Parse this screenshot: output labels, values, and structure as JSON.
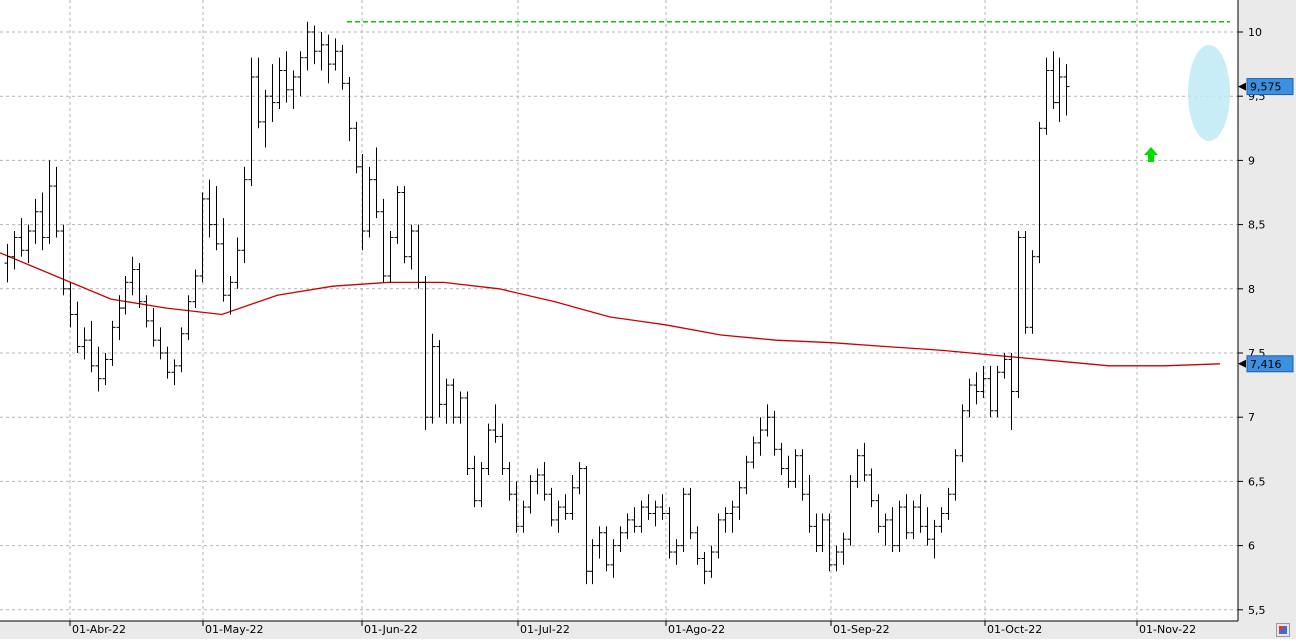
{
  "colors": {
    "grid": "#b4b4b4",
    "bars": "#000000",
    "moving_average": "#cc0000",
    "resistance": "#00cc00",
    "arrow": "#00dd00",
    "highlight": "#bfeaf5",
    "price_tag": "#3d8fe0",
    "axis_bg": "#eaeaea"
  },
  "icons": [
    "green-up-arrow-icon",
    "chart-settings-icon"
  ],
  "chart_data": {
    "type": "ohlc",
    "title": "",
    "xlabel": "",
    "ylabel": "",
    "ylim": [
      5.5,
      10.1
    ],
    "grid": true,
    "y_ticks": [
      "5,5",
      "6",
      "6,5",
      "7",
      "7,5",
      "8",
      "8,5",
      "9",
      "9,5",
      "10"
    ],
    "x_ticks": [
      "01-Abr-22",
      "01-May-22",
      "01-Jun-22",
      "01-Jul-22",
      "01-Ago-22",
      "01-Sep-22",
      "01-Oct-22",
      "01-Nov-22"
    ],
    "last_price_label": "9,575",
    "last_price": 9.575,
    "moving_average_label": "7,416",
    "moving_average_value": 7.416,
    "resistance_level": 10.08,
    "series": [
      {
        "ohlc": [
          [
            8.2,
            8.35,
            8.05,
            8.25
          ],
          [
            8.25,
            8.45,
            8.15,
            8.4
          ],
          [
            8.4,
            8.55,
            8.25,
            8.3
          ],
          [
            8.3,
            8.5,
            8.2,
            8.45
          ],
          [
            8.45,
            8.7,
            8.35,
            8.6
          ],
          [
            8.6,
            8.75,
            8.3,
            8.4
          ],
          [
            8.4,
            9.0,
            8.35,
            8.8
          ],
          [
            8.8,
            8.95,
            8.4,
            8.45
          ],
          [
            8.45,
            8.5,
            7.95,
            8.0
          ],
          [
            8.0,
            8.05,
            7.7,
            7.8
          ],
          [
            7.8,
            7.9,
            7.5,
            7.55
          ],
          [
            7.55,
            7.7,
            7.45,
            7.6
          ],
          [
            7.6,
            7.75,
            7.35,
            7.4
          ],
          [
            7.4,
            7.55,
            7.2,
            7.3
          ],
          [
            7.3,
            7.5,
            7.25,
            7.45
          ],
          [
            7.45,
            7.75,
            7.4,
            7.7
          ],
          [
            7.7,
            7.95,
            7.6,
            7.85
          ],
          [
            7.85,
            8.1,
            7.8,
            8.05
          ],
          [
            8.05,
            8.25,
            7.95,
            8.15
          ],
          [
            8.15,
            8.2,
            7.85,
            7.9
          ],
          [
            7.9,
            7.95,
            7.7,
            7.75
          ],
          [
            7.75,
            7.85,
            7.55,
            7.6
          ],
          [
            7.6,
            7.7,
            7.45,
            7.5
          ],
          [
            7.5,
            7.55,
            7.3,
            7.35
          ],
          [
            7.35,
            7.45,
            7.25,
            7.4
          ],
          [
            7.4,
            7.7,
            7.35,
            7.65
          ],
          [
            7.65,
            7.95,
            7.6,
            7.9
          ],
          [
            7.9,
            8.15,
            7.85,
            8.1
          ],
          [
            8.1,
            8.75,
            8.05,
            8.7
          ],
          [
            8.7,
            8.85,
            8.4,
            8.5
          ],
          [
            8.5,
            8.8,
            8.3,
            8.35
          ],
          [
            8.35,
            8.55,
            7.9,
            7.95
          ],
          [
            7.95,
            8.1,
            7.8,
            8.05
          ],
          [
            8.05,
            8.4,
            8.0,
            8.3
          ],
          [
            8.3,
            8.95,
            8.2,
            8.85
          ],
          [
            8.85,
            9.8,
            8.8,
            9.65
          ],
          [
            9.65,
            9.8,
            9.25,
            9.3
          ],
          [
            9.3,
            9.55,
            9.1,
            9.5
          ],
          [
            9.5,
            9.75,
            9.3,
            9.45
          ],
          [
            9.45,
            9.8,
            9.4,
            9.7
          ],
          [
            9.7,
            9.85,
            9.45,
            9.55
          ],
          [
            9.55,
            9.7,
            9.4,
            9.65
          ],
          [
            9.65,
            9.85,
            9.5,
            9.8
          ],
          [
            9.8,
            10.08,
            9.7,
            10.0
          ],
          [
            10.0,
            10.05,
            9.75,
            9.85
          ],
          [
            9.85,
            10.0,
            9.7,
            9.9
          ],
          [
            9.9,
            9.98,
            9.6,
            9.75
          ],
          [
            9.75,
            9.95,
            9.7,
            9.85
          ],
          [
            9.85,
            9.9,
            9.55,
            9.6
          ],
          [
            9.6,
            9.65,
            9.15,
            9.25
          ],
          [
            9.25,
            9.3,
            8.9,
            8.95
          ],
          [
            8.95,
            9.05,
            8.3,
            8.45
          ],
          [
            8.45,
            8.95,
            8.4,
            8.85
          ],
          [
            8.85,
            9.1,
            8.55,
            8.6
          ],
          [
            8.6,
            8.7,
            8.05,
            8.1
          ],
          [
            8.1,
            8.45,
            8.05,
            8.4
          ],
          [
            8.4,
            8.8,
            8.35,
            8.75
          ],
          [
            8.75,
            8.8,
            8.2,
            8.25
          ],
          [
            8.25,
            8.5,
            8.15,
            8.45
          ],
          [
            8.45,
            8.5,
            8.0,
            8.05
          ],
          [
            8.05,
            8.1,
            6.9,
            7.0
          ],
          [
            7.0,
            7.65,
            6.95,
            7.55
          ],
          [
            7.55,
            7.6,
            7.0,
            7.1
          ],
          [
            7.1,
            7.3,
            6.95,
            7.25
          ],
          [
            7.25,
            7.3,
            6.95,
            7.0
          ],
          [
            7.0,
            7.2,
            6.95,
            7.15
          ],
          [
            7.15,
            7.2,
            6.55,
            6.6
          ],
          [
            6.6,
            6.7,
            6.3,
            6.35
          ],
          [
            6.35,
            6.65,
            6.3,
            6.6
          ],
          [
            6.6,
            6.95,
            6.55,
            6.9
          ],
          [
            6.9,
            7.1,
            6.8,
            6.85
          ],
          [
            6.85,
            6.95,
            6.55,
            6.6
          ],
          [
            6.6,
            6.65,
            6.35,
            6.4
          ],
          [
            6.4,
            6.5,
            6.1,
            6.15
          ],
          [
            6.15,
            6.35,
            6.1,
            6.3
          ],
          [
            6.3,
            6.55,
            6.25,
            6.5
          ],
          [
            6.5,
            6.6,
            6.4,
            6.55
          ],
          [
            6.55,
            6.65,
            6.35,
            6.4
          ],
          [
            6.4,
            6.45,
            6.15,
            6.2
          ],
          [
            6.2,
            6.35,
            6.1,
            6.3
          ],
          [
            6.3,
            6.4,
            6.2,
            6.25
          ],
          [
            6.25,
            6.55,
            6.2,
            6.45
          ],
          [
            6.45,
            6.65,
            6.4,
            6.6
          ],
          [
            6.6,
            6.62,
            5.7,
            5.8
          ],
          [
            5.8,
            6.05,
            5.7,
            6.0
          ],
          [
            6.0,
            6.15,
            5.9,
            6.1
          ],
          [
            6.1,
            6.15,
            5.8,
            5.85
          ],
          [
            5.85,
            6.05,
            5.75,
            6.0
          ],
          [
            6.0,
            6.15,
            5.95,
            6.1
          ],
          [
            6.1,
            6.25,
            6.05,
            6.2
          ],
          [
            6.2,
            6.3,
            6.1,
            6.15
          ],
          [
            6.15,
            6.35,
            6.1,
            6.3
          ],
          [
            6.3,
            6.4,
            6.2,
            6.25
          ],
          [
            6.25,
            6.35,
            6.15,
            6.3
          ],
          [
            6.3,
            6.4,
            6.2,
            6.25
          ],
          [
            6.25,
            6.3,
            5.9,
            5.95
          ],
          [
            5.95,
            6.05,
            5.85,
            6.0
          ],
          [
            6.0,
            6.45,
            5.95,
            6.4
          ],
          [
            6.4,
            6.45,
            6.05,
            6.1
          ],
          [
            6.1,
            6.15,
            5.85,
            5.9
          ],
          [
            5.9,
            5.95,
            5.7,
            5.8
          ],
          [
            5.8,
            6.0,
            5.75,
            5.95
          ],
          [
            5.95,
            6.25,
            5.9,
            6.2
          ],
          [
            6.2,
            6.3,
            6.1,
            6.25
          ],
          [
            6.25,
            6.35,
            6.1,
            6.3
          ],
          [
            6.3,
            6.5,
            6.2,
            6.45
          ],
          [
            6.45,
            6.7,
            6.4,
            6.65
          ],
          [
            6.65,
            6.85,
            6.6,
            6.8
          ],
          [
            6.8,
            7.0,
            6.7,
            6.9
          ],
          [
            6.9,
            7.1,
            6.85,
            7.0
          ],
          [
            7.0,
            7.05,
            6.7,
            6.75
          ],
          [
            6.75,
            6.8,
            6.55,
            6.6
          ],
          [
            6.6,
            6.7,
            6.45,
            6.5
          ],
          [
            6.5,
            6.75,
            6.45,
            6.7
          ],
          [
            6.7,
            6.75,
            6.35,
            6.4
          ],
          [
            6.4,
            6.55,
            6.1,
            6.15
          ],
          [
            6.15,
            6.25,
            5.95,
            6.0
          ],
          [
            6.0,
            6.25,
            5.95,
            6.2
          ],
          [
            6.2,
            6.25,
            5.8,
            5.85
          ],
          [
            5.85,
            6.0,
            5.8,
            5.95
          ],
          [
            5.95,
            6.1,
            5.85,
            6.05
          ],
          [
            6.05,
            6.55,
            6.0,
            6.5
          ],
          [
            6.5,
            6.75,
            6.45,
            6.7
          ],
          [
            6.7,
            6.8,
            6.5,
            6.55
          ],
          [
            6.55,
            6.6,
            6.3,
            6.35
          ],
          [
            6.35,
            6.4,
            6.1,
            6.15
          ],
          [
            6.15,
            6.25,
            6.0,
            6.2
          ],
          [
            6.2,
            6.3,
            5.95,
            6.0
          ],
          [
            6.0,
            6.35,
            5.95,
            6.3
          ],
          [
            6.3,
            6.4,
            6.05,
            6.1
          ],
          [
            6.1,
            6.35,
            6.05,
            6.3
          ],
          [
            6.3,
            6.4,
            6.1,
            6.15
          ],
          [
            6.15,
            6.3,
            6.0,
            6.05
          ],
          [
            6.05,
            6.2,
            5.9,
            6.15
          ],
          [
            6.15,
            6.3,
            6.1,
            6.25
          ],
          [
            6.25,
            6.45,
            6.2,
            6.4
          ],
          [
            6.4,
            6.75,
            6.35,
            6.7
          ],
          [
            6.7,
            7.1,
            6.65,
            7.05
          ],
          [
            7.05,
            7.3,
            7.0,
            7.25
          ],
          [
            7.25,
            7.35,
            7.1,
            7.2
          ],
          [
            7.2,
            7.4,
            7.15,
            7.3
          ],
          [
            7.3,
            7.4,
            7.0,
            7.05
          ],
          [
            7.05,
            7.4,
            7.0,
            7.35
          ],
          [
            7.35,
            7.5,
            7.3,
            7.45
          ],
          [
            7.45,
            7.5,
            6.9,
            7.2
          ],
          [
            7.2,
            8.45,
            7.15,
            8.4
          ],
          [
            8.4,
            8.45,
            7.65,
            7.7
          ],
          [
            7.7,
            8.3,
            7.65,
            8.25
          ],
          [
            8.25,
            9.3,
            8.2,
            9.25
          ],
          [
            9.25,
            9.8,
            9.2,
            9.7
          ],
          [
            9.7,
            9.85,
            9.4,
            9.45
          ],
          [
            9.45,
            9.8,
            9.3,
            9.65
          ],
          [
            9.65,
            9.75,
            9.35,
            9.575
          ]
        ]
      }
    ],
    "moving_average": [
      8.28,
      8.1,
      7.92,
      7.85,
      7.8,
      7.95,
      8.02,
      8.05,
      8.05,
      8.0,
      7.9,
      7.78,
      7.72,
      7.64,
      7.6,
      7.58,
      7.55,
      7.52,
      7.48,
      7.44,
      7.4,
      7.4,
      7.416
    ]
  }
}
